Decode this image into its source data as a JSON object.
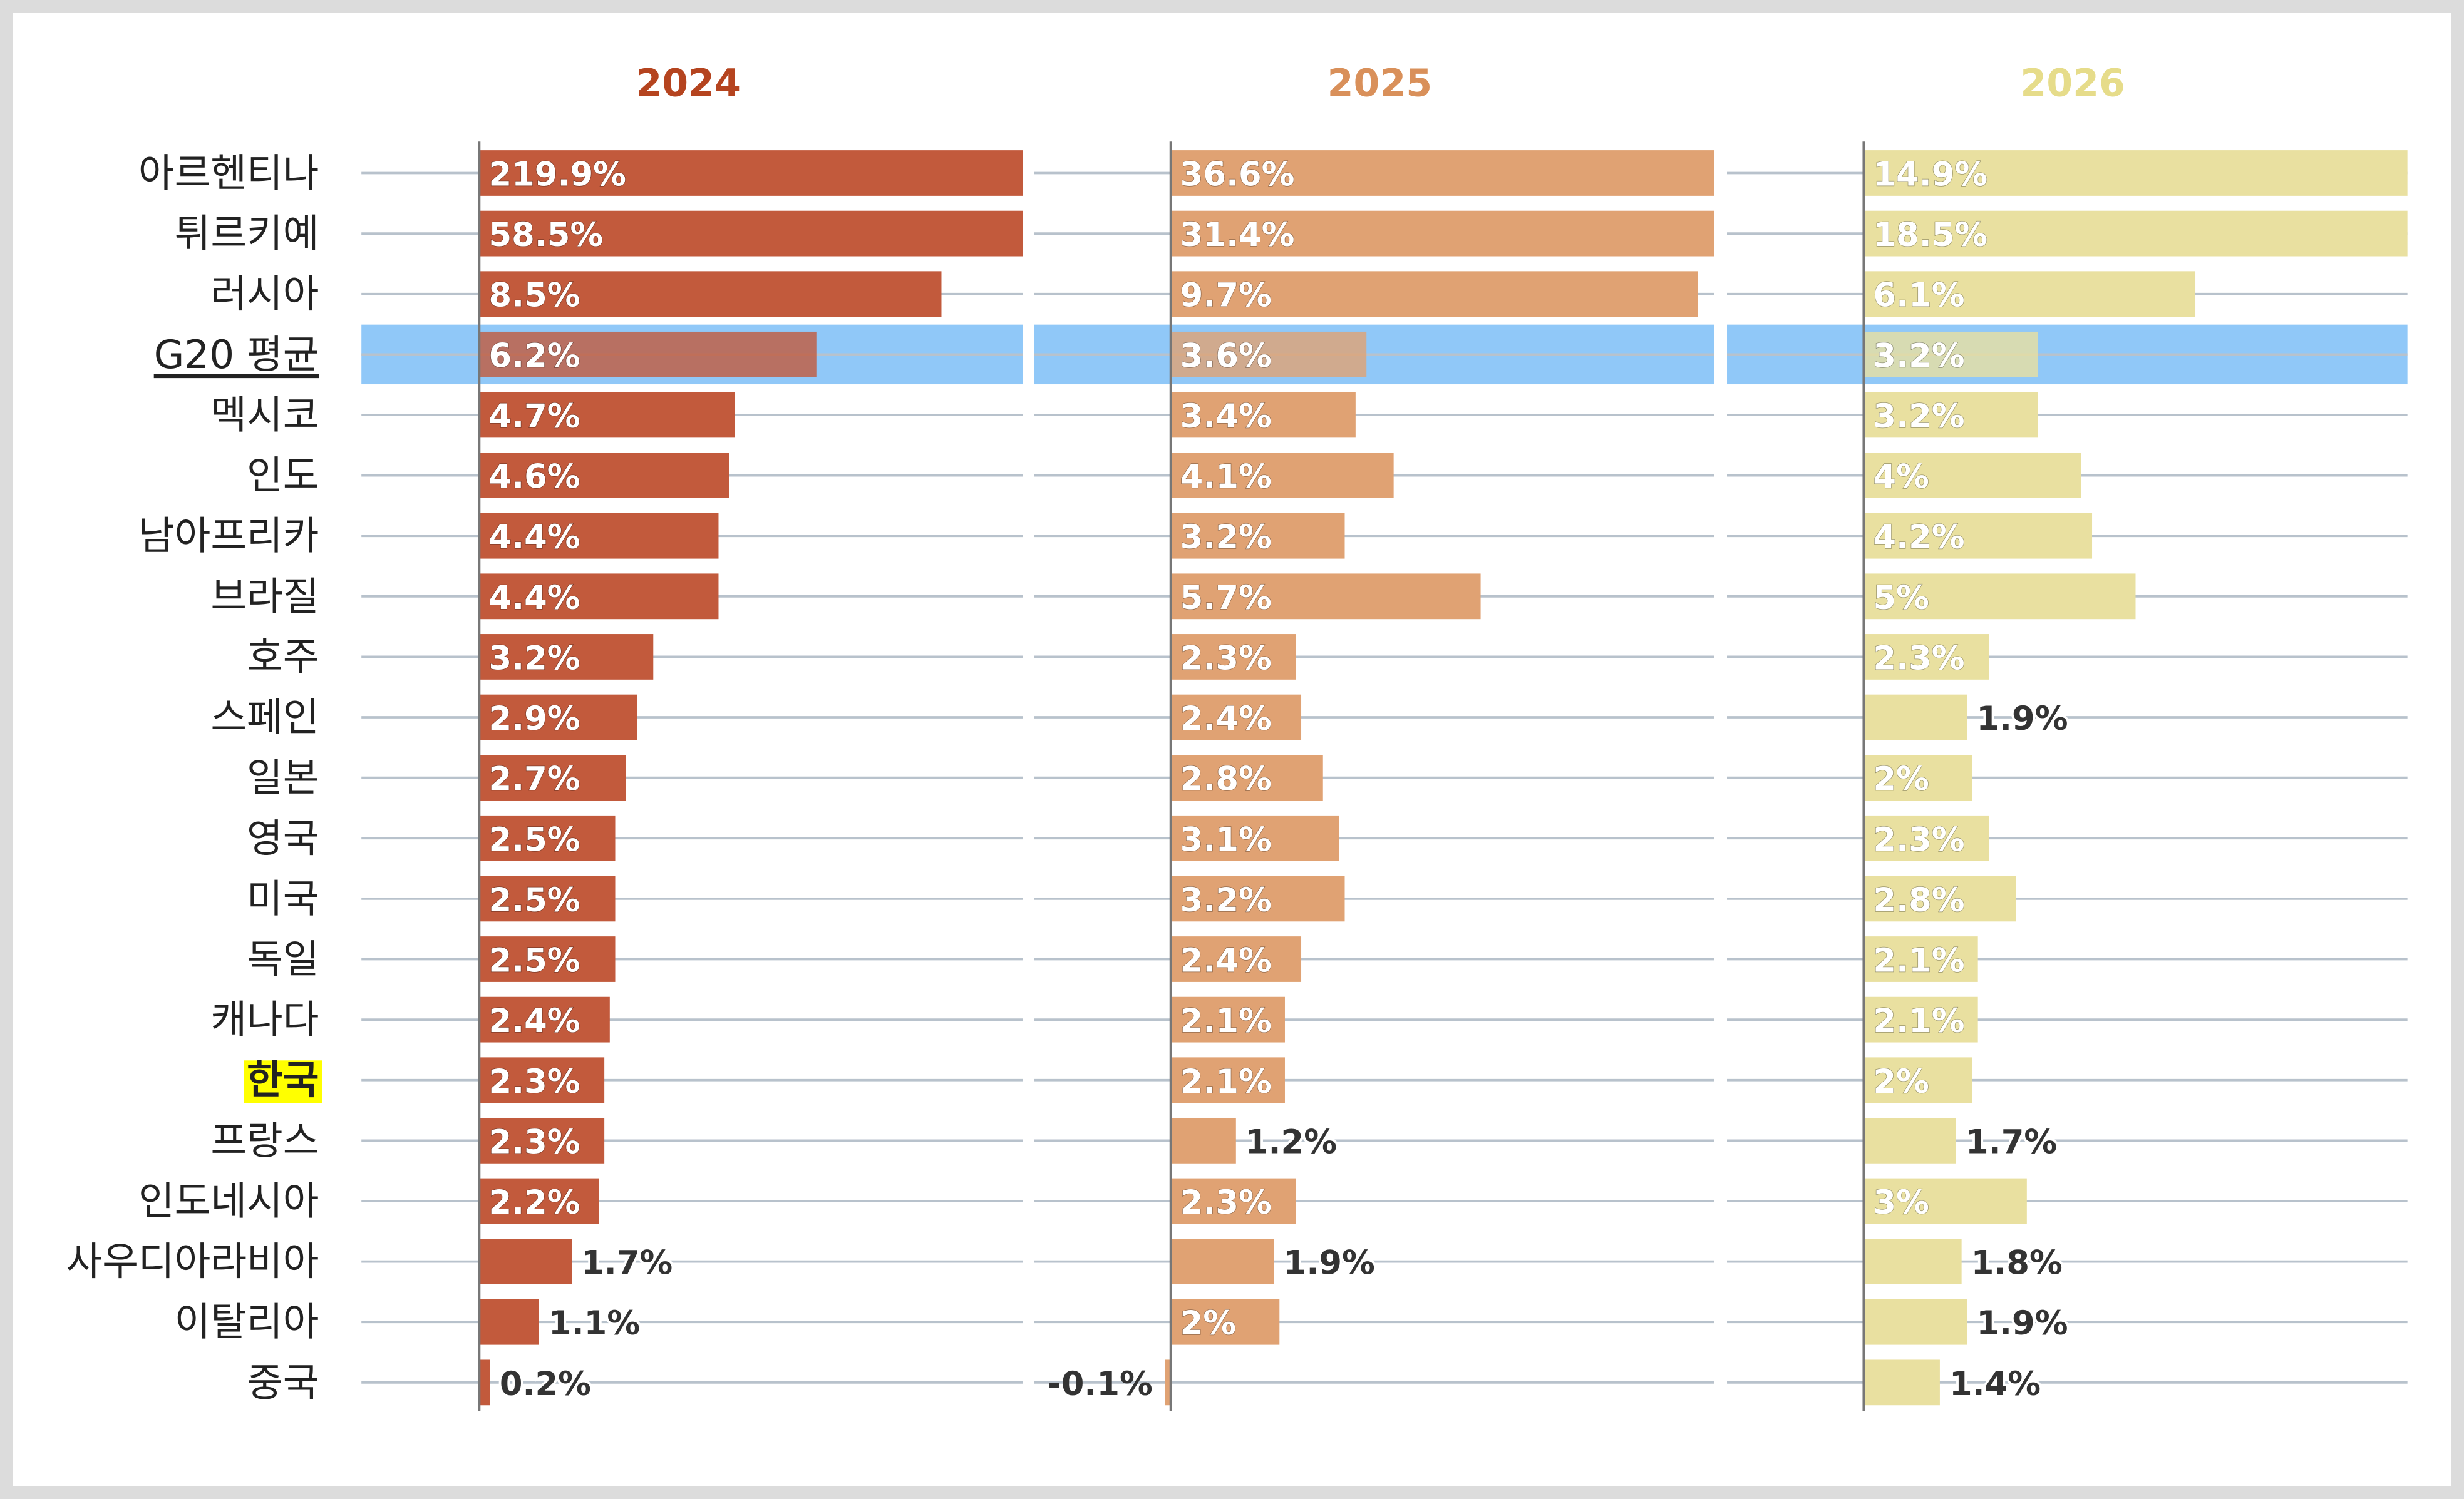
{
  "chart_data": {
    "type": "bar",
    "orientation": "horizontal",
    "categories": [
      "아르헨티나",
      "튀르키예",
      "러시아",
      "G20 평균",
      "멕시코",
      "인도",
      "남아프리카",
      "브라질",
      "호주",
      "스페인",
      "일본",
      "영국",
      "미국",
      "독일",
      "캐나다",
      "한국",
      "프랑스",
      "인도네시아",
      "사우디아라비아",
      "이탈리아",
      "중국"
    ],
    "xlim": [
      0,
      10
    ],
    "series": [
      {
        "name": "2024",
        "color": "#c25a3c",
        "title_color": "#b5441f",
        "values": [
          219.9,
          58.5,
          8.5,
          6.2,
          4.7,
          4.6,
          4.4,
          4.4,
          3.2,
          2.9,
          2.7,
          2.5,
          2.5,
          2.5,
          2.4,
          2.3,
          2.3,
          2.2,
          1.7,
          1.1,
          0.2
        ],
        "value_labels": [
          "219.9%",
          "58.5%",
          "8.5%",
          "6.2%",
          "4.7%",
          "4.6%",
          "4.4%",
          "4.4%",
          "3.2%",
          "2.9%",
          "2.7%",
          "2.5%",
          "2.5%",
          "2.5%",
          "2.4%",
          "2.3%",
          "2.3%",
          "2.2%",
          "1.7%",
          "1.1%",
          "0.2%"
        ]
      },
      {
        "name": "2025",
        "color": "#e0a273",
        "title_color": "#d9905a",
        "values": [
          36.6,
          31.4,
          9.7,
          3.6,
          3.4,
          4.1,
          3.2,
          5.7,
          2.3,
          2.4,
          2.8,
          3.1,
          3.2,
          2.4,
          2.1,
          2.1,
          1.2,
          2.3,
          1.9,
          2,
          -0.1
        ],
        "value_labels": [
          "36.6%",
          "31.4%",
          "9.7%",
          "3.6%",
          "3.4%",
          "4.1%",
          "3.2%",
          "5.7%",
          "2.3%",
          "2.4%",
          "2.8%",
          "3.1%",
          "3.2%",
          "2.4%",
          "2.1%",
          "2.1%",
          "1.2%",
          "2.3%",
          "1.9%",
          "2%",
          "-0.1%"
        ]
      },
      {
        "name": "2026",
        "color": "#e9e0a0",
        "title_color": "#e6dc8a",
        "values": [
          14.9,
          18.5,
          6.1,
          3.2,
          3.2,
          4,
          4.2,
          5,
          2.3,
          1.9,
          2,
          2.3,
          2.8,
          2.1,
          2.1,
          2,
          1.7,
          3,
          1.8,
          1.9,
          1.4
        ],
        "value_labels": [
          "14.9%",
          "18.5%",
          "6.1%",
          "3.2%",
          "3.2%",
          "4%",
          "4.2%",
          "5%",
          "2.3%",
          "1.9%",
          "2%",
          "2.3%",
          "2.8%",
          "2.1%",
          "2.1%",
          "2%",
          "1.7%",
          "3%",
          "1.8%",
          "1.9%",
          "1.4%"
        ]
      }
    ]
  }
}
